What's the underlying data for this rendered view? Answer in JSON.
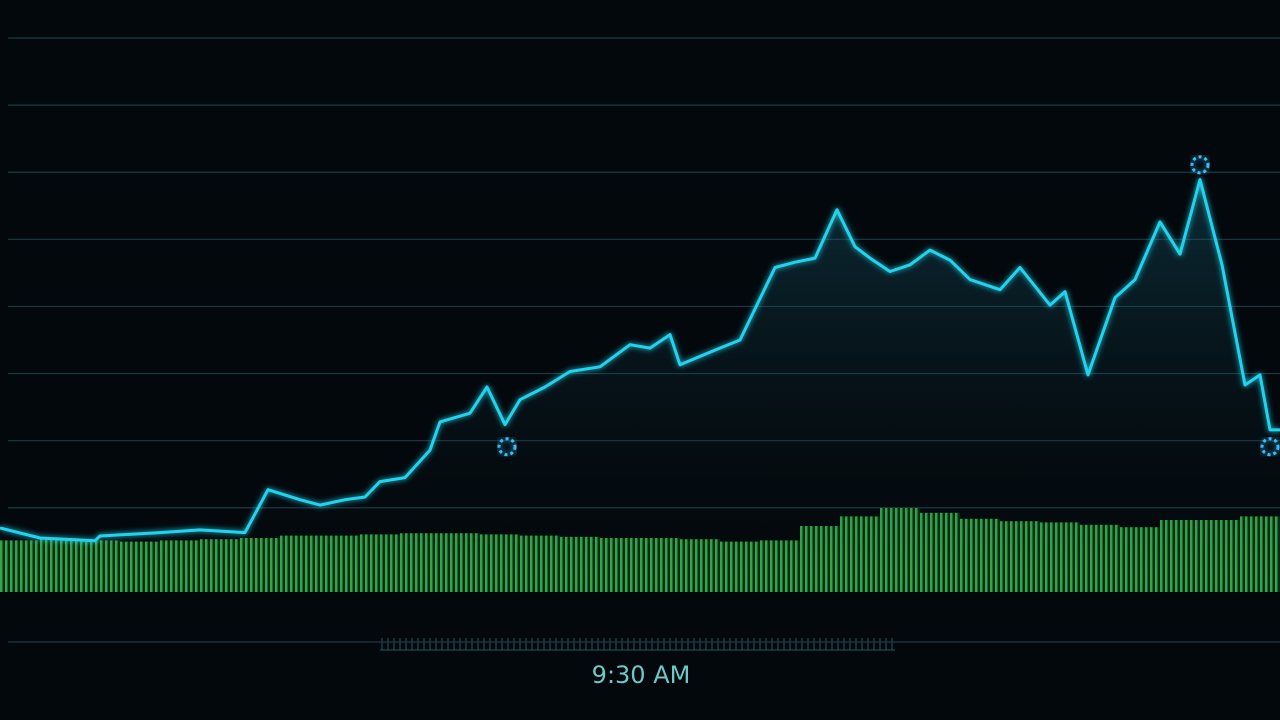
{
  "chart_data": {
    "type": "line",
    "x": [
      0,
      40,
      95,
      100,
      160,
      200,
      245,
      268,
      300,
      320,
      345,
      365,
      380,
      405,
      430,
      440,
      470,
      487,
      505,
      520,
      545,
      570,
      600,
      630,
      650,
      670,
      680,
      715,
      740,
      775,
      795,
      815,
      837,
      855,
      870,
      890,
      910,
      930,
      950,
      970,
      1000,
      1020,
      1050,
      1065,
      1088,
      1115,
      1135,
      1160,
      1180,
      1200,
      1222,
      1245,
      1260,
      1270,
      1280
    ],
    "xlim": [
      0,
      1280
    ],
    "series": [
      {
        "color": "#22d3ee",
        "values": [
          7.0,
          5.5,
          5.1,
          5.8,
          6.3,
          6.7,
          6.3,
          12.7,
          11.2,
          10.4,
          11.2,
          11.6,
          13.9,
          14.5,
          18.6,
          22.8,
          24.1,
          28.0,
          22.4,
          26.1,
          28.0,
          30.3,
          31.0,
          34.3,
          33.8,
          35.8,
          31.3,
          33.5,
          35.0,
          45.8,
          46.6,
          47.2,
          54.4,
          48.9,
          47.2,
          45.2,
          46.2,
          48.4,
          46.9,
          44.0,
          42.5,
          45.8,
          40.2,
          42.2,
          29.8,
          41.3,
          44.0,
          52.6,
          47.8,
          58.9,
          46.2,
          28.3,
          29.8,
          21.6,
          21.6
        ]
      }
    ],
    "points": {
      "color": "#38bdf8",
      "x": [
        507,
        1200,
        1270
      ],
      "values": [
        19.1,
        61.1,
        19.1
      ]
    },
    "volume": {
      "color": "#22c55e",
      "axis": "y2",
      "values": [
        43,
        44,
        43,
        42,
        43,
        44,
        45,
        47,
        47,
        48,
        49,
        49,
        48,
        47,
        46,
        45,
        45,
        44,
        42,
        43,
        55,
        63,
        70,
        66,
        61,
        59,
        58,
        56,
        54,
        60,
        60,
        63
      ]
    },
    "y2lim": [
      0,
      100
    ],
    "ylim": [
      -10,
      80
    ],
    "yticks": [
      -10,
      0,
      10,
      20,
      30,
      40,
      50,
      60,
      70,
      80
    ],
    "grid": true,
    "x_label": "9:30 AM"
  }
}
